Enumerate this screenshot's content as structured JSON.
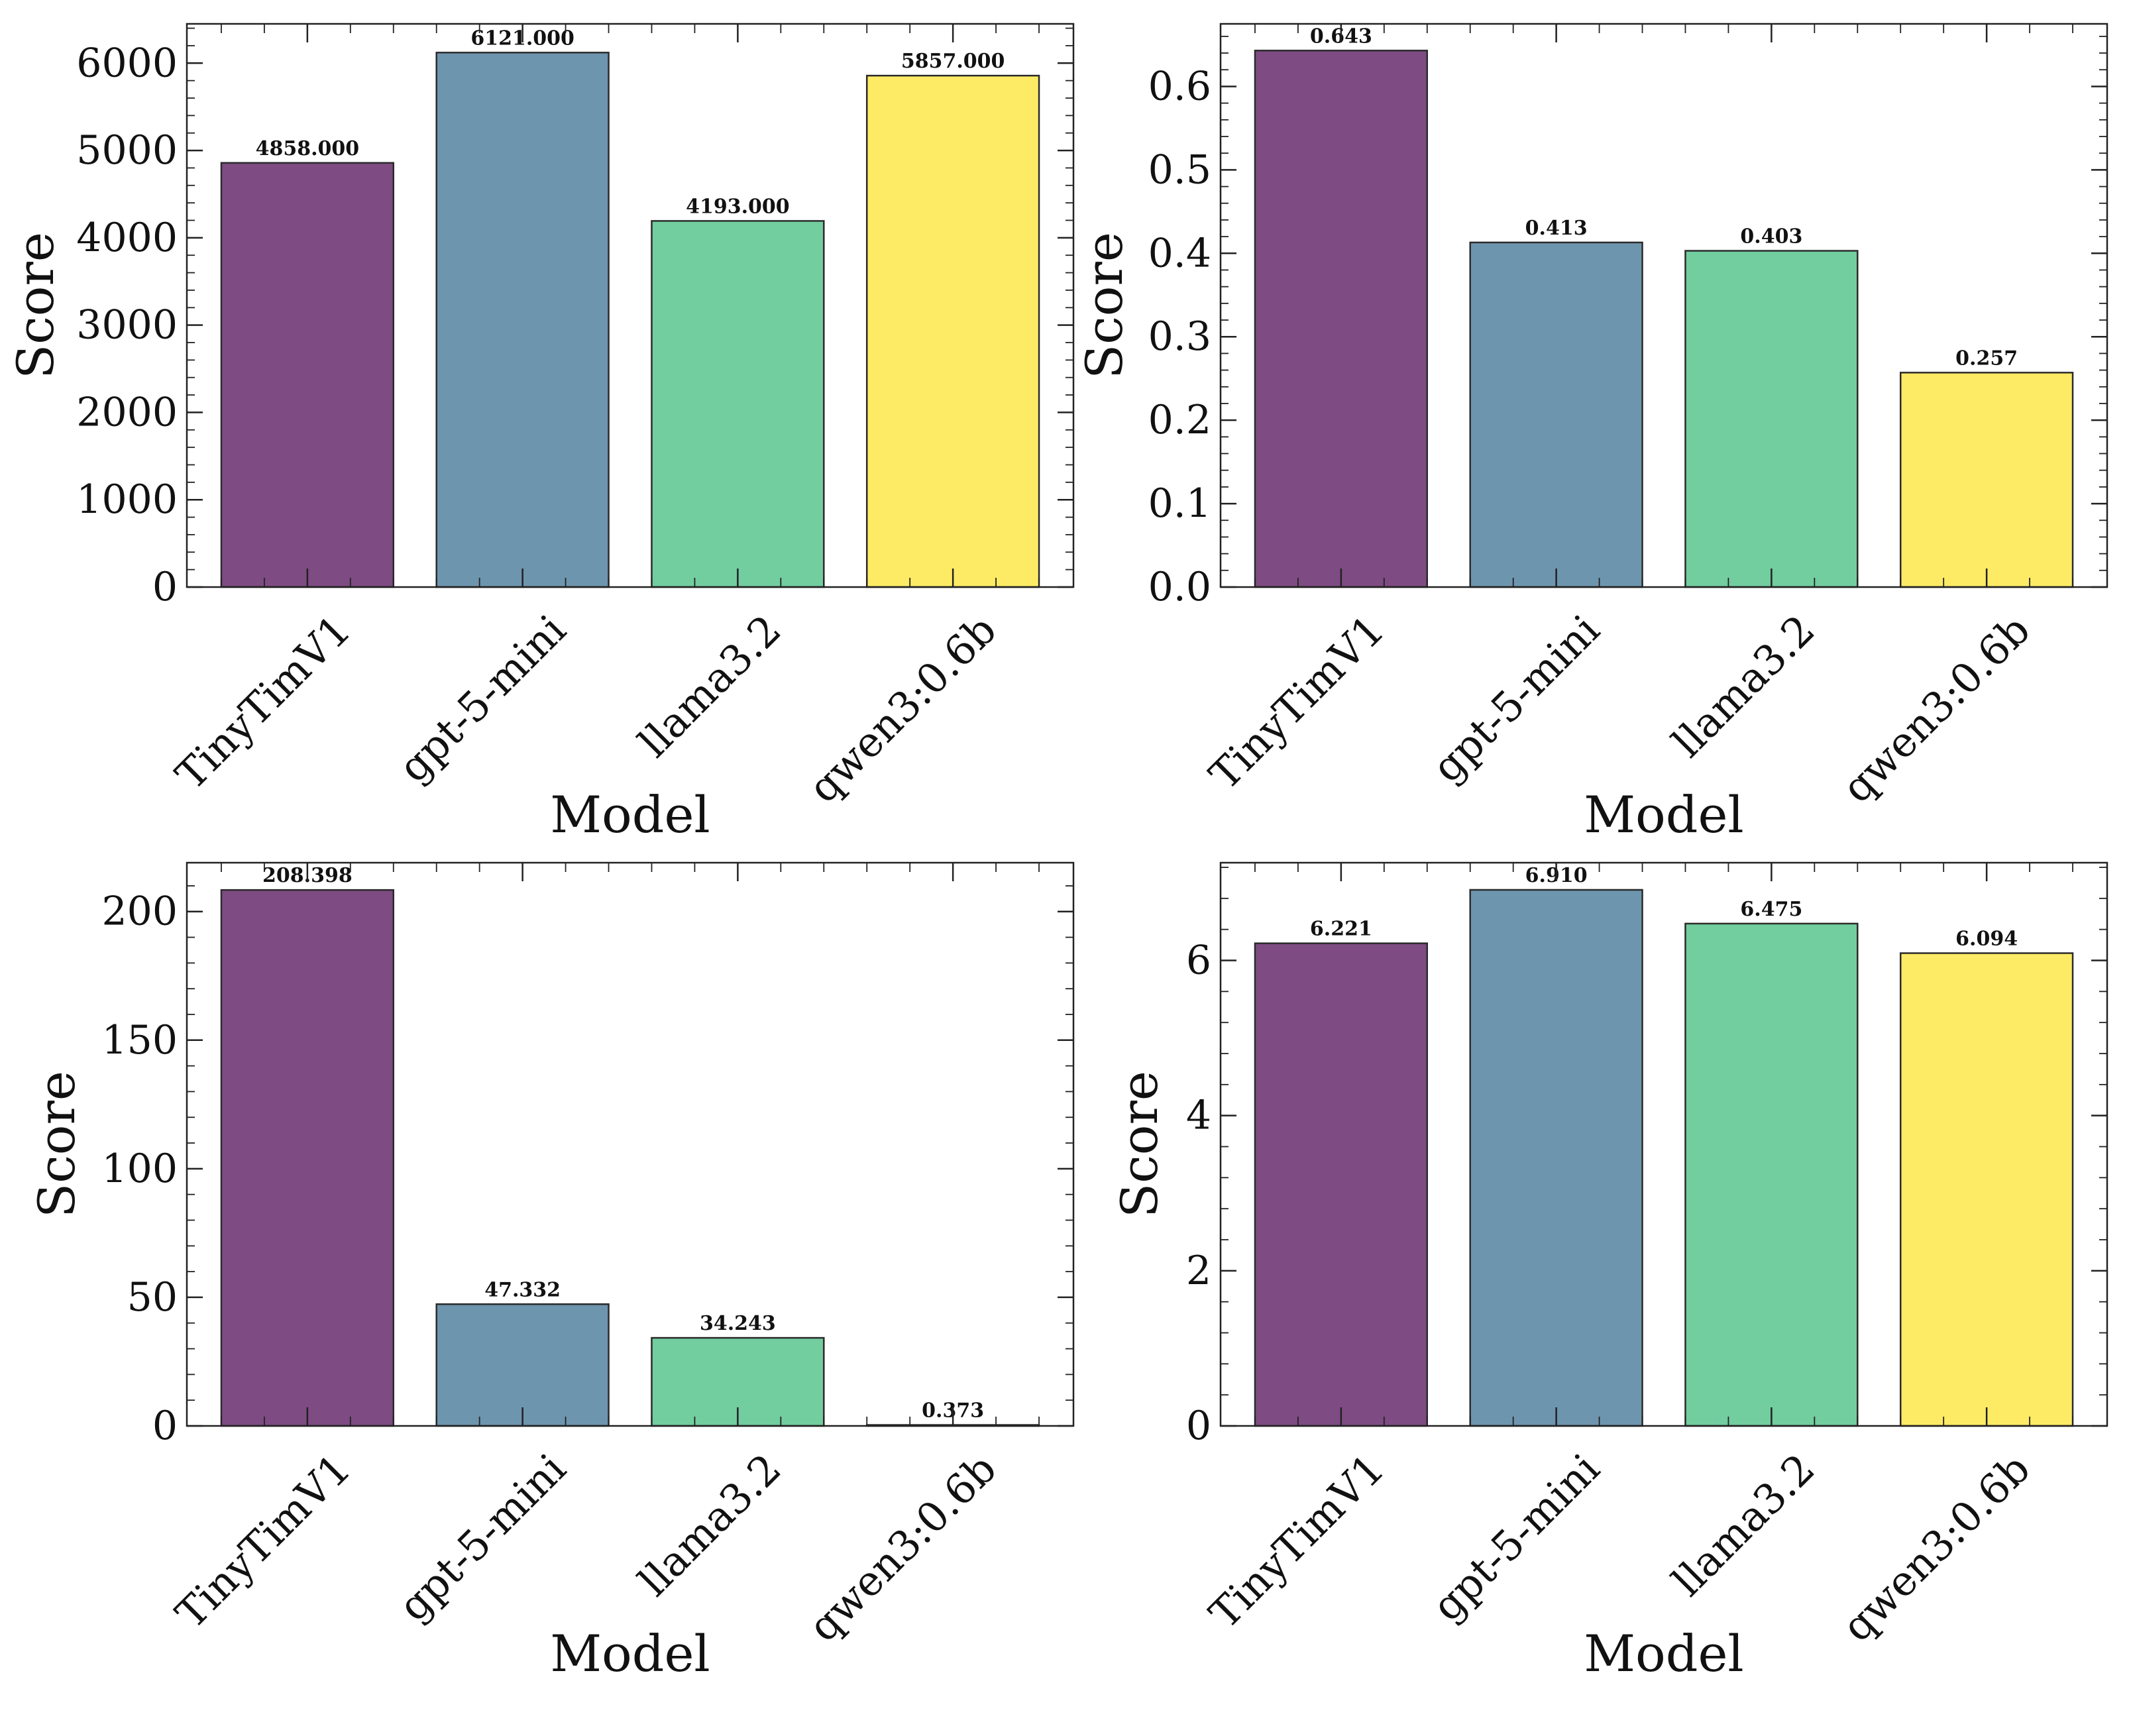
{
  "chart_data": [
    {
      "type": "bar",
      "title": "",
      "xlabel": "Model",
      "ylabel": "Score",
      "categories": [
        "TinyTimV1",
        "gpt-5-mini",
        "llama3.2",
        "qwen3:0.6b"
      ],
      "values": [
        4858,
        6121,
        4193,
        5857
      ],
      "value_labels": [
        "4858.000",
        "6121.000",
        "4193.000",
        "5857.000"
      ],
      "ylim": [
        0,
        6450
      ],
      "yticks": [
        0,
        1000,
        2000,
        3000,
        4000,
        5000,
        6000
      ],
      "ytick_labels": [
        "0",
        "1000",
        "2000",
        "3000",
        "4000",
        "5000",
        "6000"
      ],
      "yminor_step": 200,
      "grid": false
    },
    {
      "type": "bar",
      "title": "",
      "xlabel": "Model",
      "ylabel": "Score",
      "categories": [
        "TinyTimV1",
        "gpt-5-mini",
        "llama3.2",
        "qwen3:0.6b"
      ],
      "values": [
        0.643,
        0.413,
        0.403,
        0.257
      ],
      "value_labels": [
        "0.643",
        "0.413",
        "0.403",
        "0.257"
      ],
      "ylim": [
        0,
        0.675
      ],
      "yticks": [
        0,
        0.1,
        0.2,
        0.3,
        0.4,
        0.5,
        0.6
      ],
      "ytick_labels": [
        "0.0",
        "0.1",
        "0.2",
        "0.3",
        "0.4",
        "0.5",
        "0.6"
      ],
      "yminor_step": 0.02,
      "grid": false
    },
    {
      "type": "bar",
      "title": "",
      "xlabel": "Model",
      "ylabel": "Score",
      "categories": [
        "TinyTimV1",
        "gpt-5-mini",
        "llama3.2",
        "qwen3:0.6b"
      ],
      "values": [
        208.398,
        47.332,
        34.243,
        0.373
      ],
      "value_labels": [
        "208.398",
        "47.332",
        "34.243",
        "0.373"
      ],
      "ylim": [
        0,
        219
      ],
      "yticks": [
        0,
        50,
        100,
        150,
        200
      ],
      "ytick_labels": [
        "0",
        "50",
        "100",
        "150",
        "200"
      ],
      "yminor_step": 10,
      "grid": false
    },
    {
      "type": "bar",
      "title": "",
      "xlabel": "Model",
      "ylabel": "Score",
      "categories": [
        "TinyTimV1",
        "gpt-5-mini",
        "llama3.2",
        "qwen3:0.6b"
      ],
      "values": [
        6.221,
        6.91,
        6.475,
        6.094
      ],
      "value_labels": [
        "6.221",
        "6.910",
        "6.475",
        "6.094"
      ],
      "ylim": [
        0,
        7.26
      ],
      "yticks": [
        0,
        2,
        4,
        6
      ],
      "ytick_labels": [
        "0",
        "2",
        "4",
        "6"
      ],
      "yminor_step": 0.4,
      "grid": false
    }
  ],
  "colors": {
    "bars": [
      "#7e4b82",
      "#6e95ae",
      "#72cd9f",
      "#feeb65"
    ],
    "edge": "#2b2b2b",
    "axis": "#222222"
  }
}
